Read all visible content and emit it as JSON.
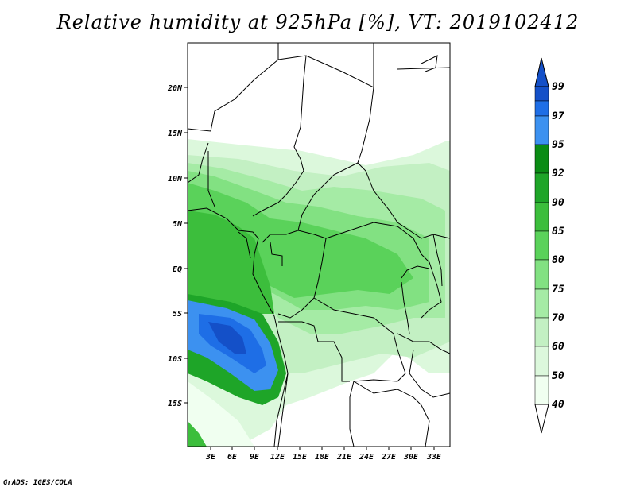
{
  "title": "Relative humidity at 925hPa [%], VT: 2019102412",
  "credit": "GrADS: IGES/COLA",
  "map": {
    "lat_ticks": [
      "20N",
      "15N",
      "10N",
      "5N",
      "EQ",
      "5S",
      "10S",
      "15S"
    ],
    "lon_ticks": [
      "3E",
      "6E",
      "9E",
      "12E",
      "15E",
      "18E",
      "21E",
      "24E",
      "27E",
      "30E",
      "33E"
    ]
  },
  "colorbar": {
    "levels": [
      "99",
      "97",
      "95",
      "92",
      "90",
      "85",
      "80",
      "75",
      "70",
      "60",
      "50",
      "40"
    ],
    "colors": [
      "#1450c8",
      "#1e6ee6",
      "#3c91f0",
      "#0a8c14",
      "#1ea528",
      "#3cbe3c",
      "#5ad25a",
      "#82e182",
      "#a5eba5",
      "#c3f0c3",
      "#dcf8dc",
      "#f0fff0"
    ]
  }
}
